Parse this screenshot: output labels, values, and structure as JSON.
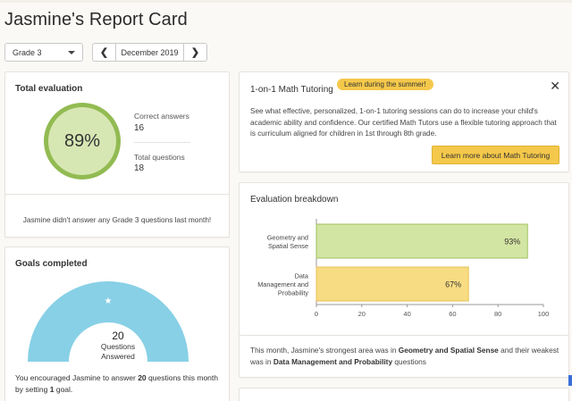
{
  "page": {
    "title": "Jasmine's Report Card"
  },
  "filters": {
    "grade_selected": "Grade 3",
    "prev_label": "❮",
    "next_label": "❯",
    "month": "December 2019"
  },
  "total_evaluation": {
    "title": "Total evaluation",
    "percent_label": "89%",
    "percent": 89,
    "correct_label": "Correct answers",
    "correct_value": "16",
    "questions_label": "Total questions",
    "questions_value": "18",
    "note": "Jasmine didn't answer any Grade 3 questions last month!"
  },
  "goals": {
    "title": "Goals completed",
    "star": "★",
    "count": "20",
    "count_label_1": "Questions",
    "count_label_2": "Answered",
    "text_1": "You encouraged Jasmine to answer ",
    "text_num": "20",
    "text_2": " questions this month by setting ",
    "text_goal": "1",
    "text_3": " goal."
  },
  "tutoring": {
    "title": "1-on-1 Math Tutoring",
    "badge": "Learn during the summer!",
    "close": "✕",
    "body": "See what effective, personalized, 1-on-1 tutoring sessions can do to increase your child's academic ability and confidence. Our certified Math Tutors use a flexible tutoring approach that is curriculum aligned for children in 1st through 8th grade.",
    "button": "Learn more about Math Tutoring"
  },
  "breakdown": {
    "title": "Evaluation breakdown",
    "text_1": "This month, Jasmine's strongest area was in ",
    "strong": "Geometry and Spatial Sense",
    "text_2": " and their weakest was in ",
    "weak": "Data Management and Probability",
    "text_3": " questions"
  },
  "colors": {
    "accent_yellow": "#f4c84a",
    "green_ring": "#92bb52",
    "green_fill": "#d7e7b3",
    "gauge_blue": "#87d0e6",
    "bar_green": "#d3e5a3",
    "bar_yellow": "#f8dc83"
  },
  "chart_data": {
    "type": "bar",
    "orientation": "horizontal",
    "categories": [
      [
        "Geometry and",
        "Spatial Sense"
      ],
      [
        "Data",
        "Management and",
        "Probability"
      ]
    ],
    "values": [
      93,
      67
    ],
    "value_labels": [
      "93%",
      "67%"
    ],
    "bar_colors": [
      "#d3e5a3",
      "#f8dc83"
    ],
    "bar_borders": [
      "#9fc062",
      "#e9c155"
    ],
    "xlim": [
      0,
      100
    ],
    "xticks": [
      0,
      20,
      40,
      60,
      80,
      100
    ],
    "xtick_labels": [
      "0",
      "20",
      "40",
      "60",
      "80",
      "100"
    ]
  }
}
